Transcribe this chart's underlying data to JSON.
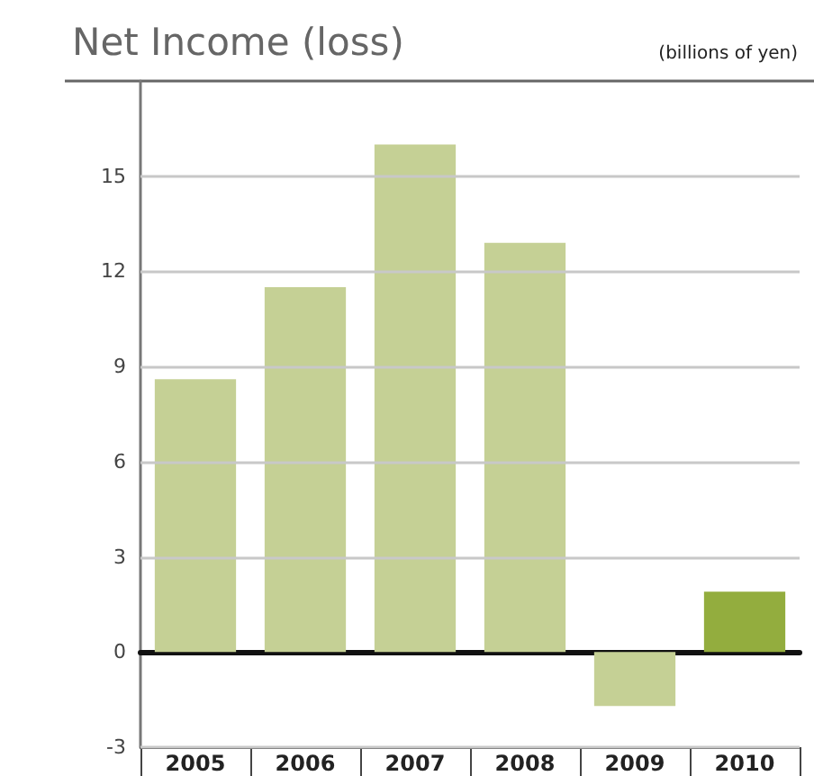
{
  "chart_data": {
    "type": "bar",
    "title": "Net Income (loss)",
    "subtitle": "(billions of yen)",
    "categories": [
      "2005",
      "2006",
      "2007",
      "2008",
      "2009",
      "2010"
    ],
    "values": [
      8.6,
      11.5,
      16.0,
      12.9,
      -1.7,
      1.9
    ],
    "colors": [
      "#c5d095",
      "#c5d095",
      "#c5d095",
      "#c5d095",
      "#c5d095",
      "#93ad3e"
    ],
    "ylim": [
      -3,
      18
    ],
    "yticks": [
      -3,
      0,
      3,
      6,
      9,
      12,
      15
    ],
    "grid": "y"
  }
}
